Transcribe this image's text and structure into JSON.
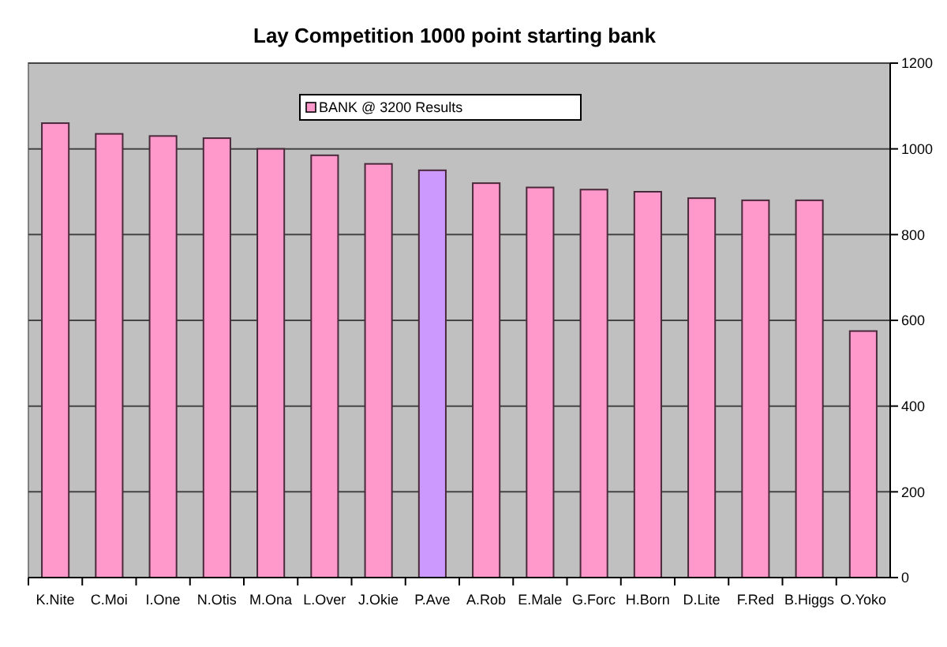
{
  "chart_data": {
    "type": "bar",
    "title": "Lay Competition 1000 point starting bank",
    "categories": [
      "K.Nite",
      "C.Moi",
      "I.One",
      "N.Otis",
      "M.Ona",
      "L.Over",
      "J.Okie",
      "P.Ave",
      "A.Rob",
      "E.Male",
      "G.Forc",
      "H.Born",
      "D.Lite",
      "F.Red",
      "B.Higgs",
      "O.Yoko"
    ],
    "series": [
      {
        "name": "BANK @ 3200 Results",
        "color": "#ff99cc",
        "colors": [
          "#ff99cc",
          "#ff99cc",
          "#ff99cc",
          "#ff99cc",
          "#ff99cc",
          "#ff99cc",
          "#ff99cc",
          "#cc99ff",
          "#ff99cc",
          "#ff99cc",
          "#ff99cc",
          "#ff99cc",
          "#ff99cc",
          "#ff99cc",
          "#ff99cc",
          "#ff99cc"
        ],
        "values": [
          1060,
          1035,
          1030,
          1025,
          1000,
          985,
          965,
          950,
          920,
          910,
          905,
          900,
          885,
          880,
          880,
          575
        ]
      }
    ],
    "ylim": [
      0,
      1200
    ],
    "yticks": [
      0,
      200,
      400,
      600,
      800,
      1000,
      1200
    ],
    "grid": "y",
    "legend": "top"
  }
}
